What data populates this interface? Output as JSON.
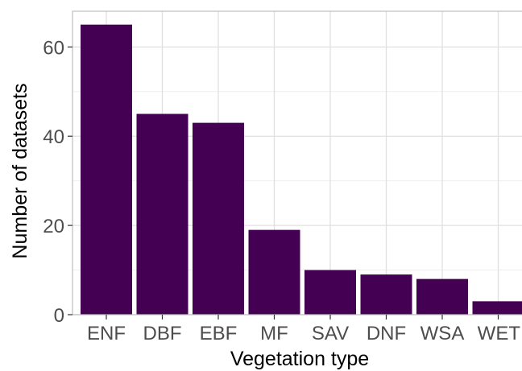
{
  "chart_data": {
    "type": "bar",
    "xlabel": "Vegetation type",
    "ylabel": "Number of datasets",
    "categories": [
      "ENF",
      "DBF",
      "EBF",
      "MF",
      "SAV",
      "DNF",
      "WSA",
      "WET"
    ],
    "values": [
      65,
      45,
      43,
      19,
      10,
      9,
      8,
      3
    ],
    "ylim": [
      0,
      68
    ],
    "yticks": [
      0,
      20,
      40,
      60
    ],
    "yticks_labels": [
      "0",
      "20",
      "40",
      "60"
    ],
    "grid": true,
    "legend": "none",
    "colors": {
      "bar": "#440154",
      "grid_major": "#e0e0e0",
      "grid_minor": "#efefef",
      "panel_border": "#bdbdbd",
      "tick_text": "#4d4d4d",
      "axis_title": "#000000"
    }
  }
}
